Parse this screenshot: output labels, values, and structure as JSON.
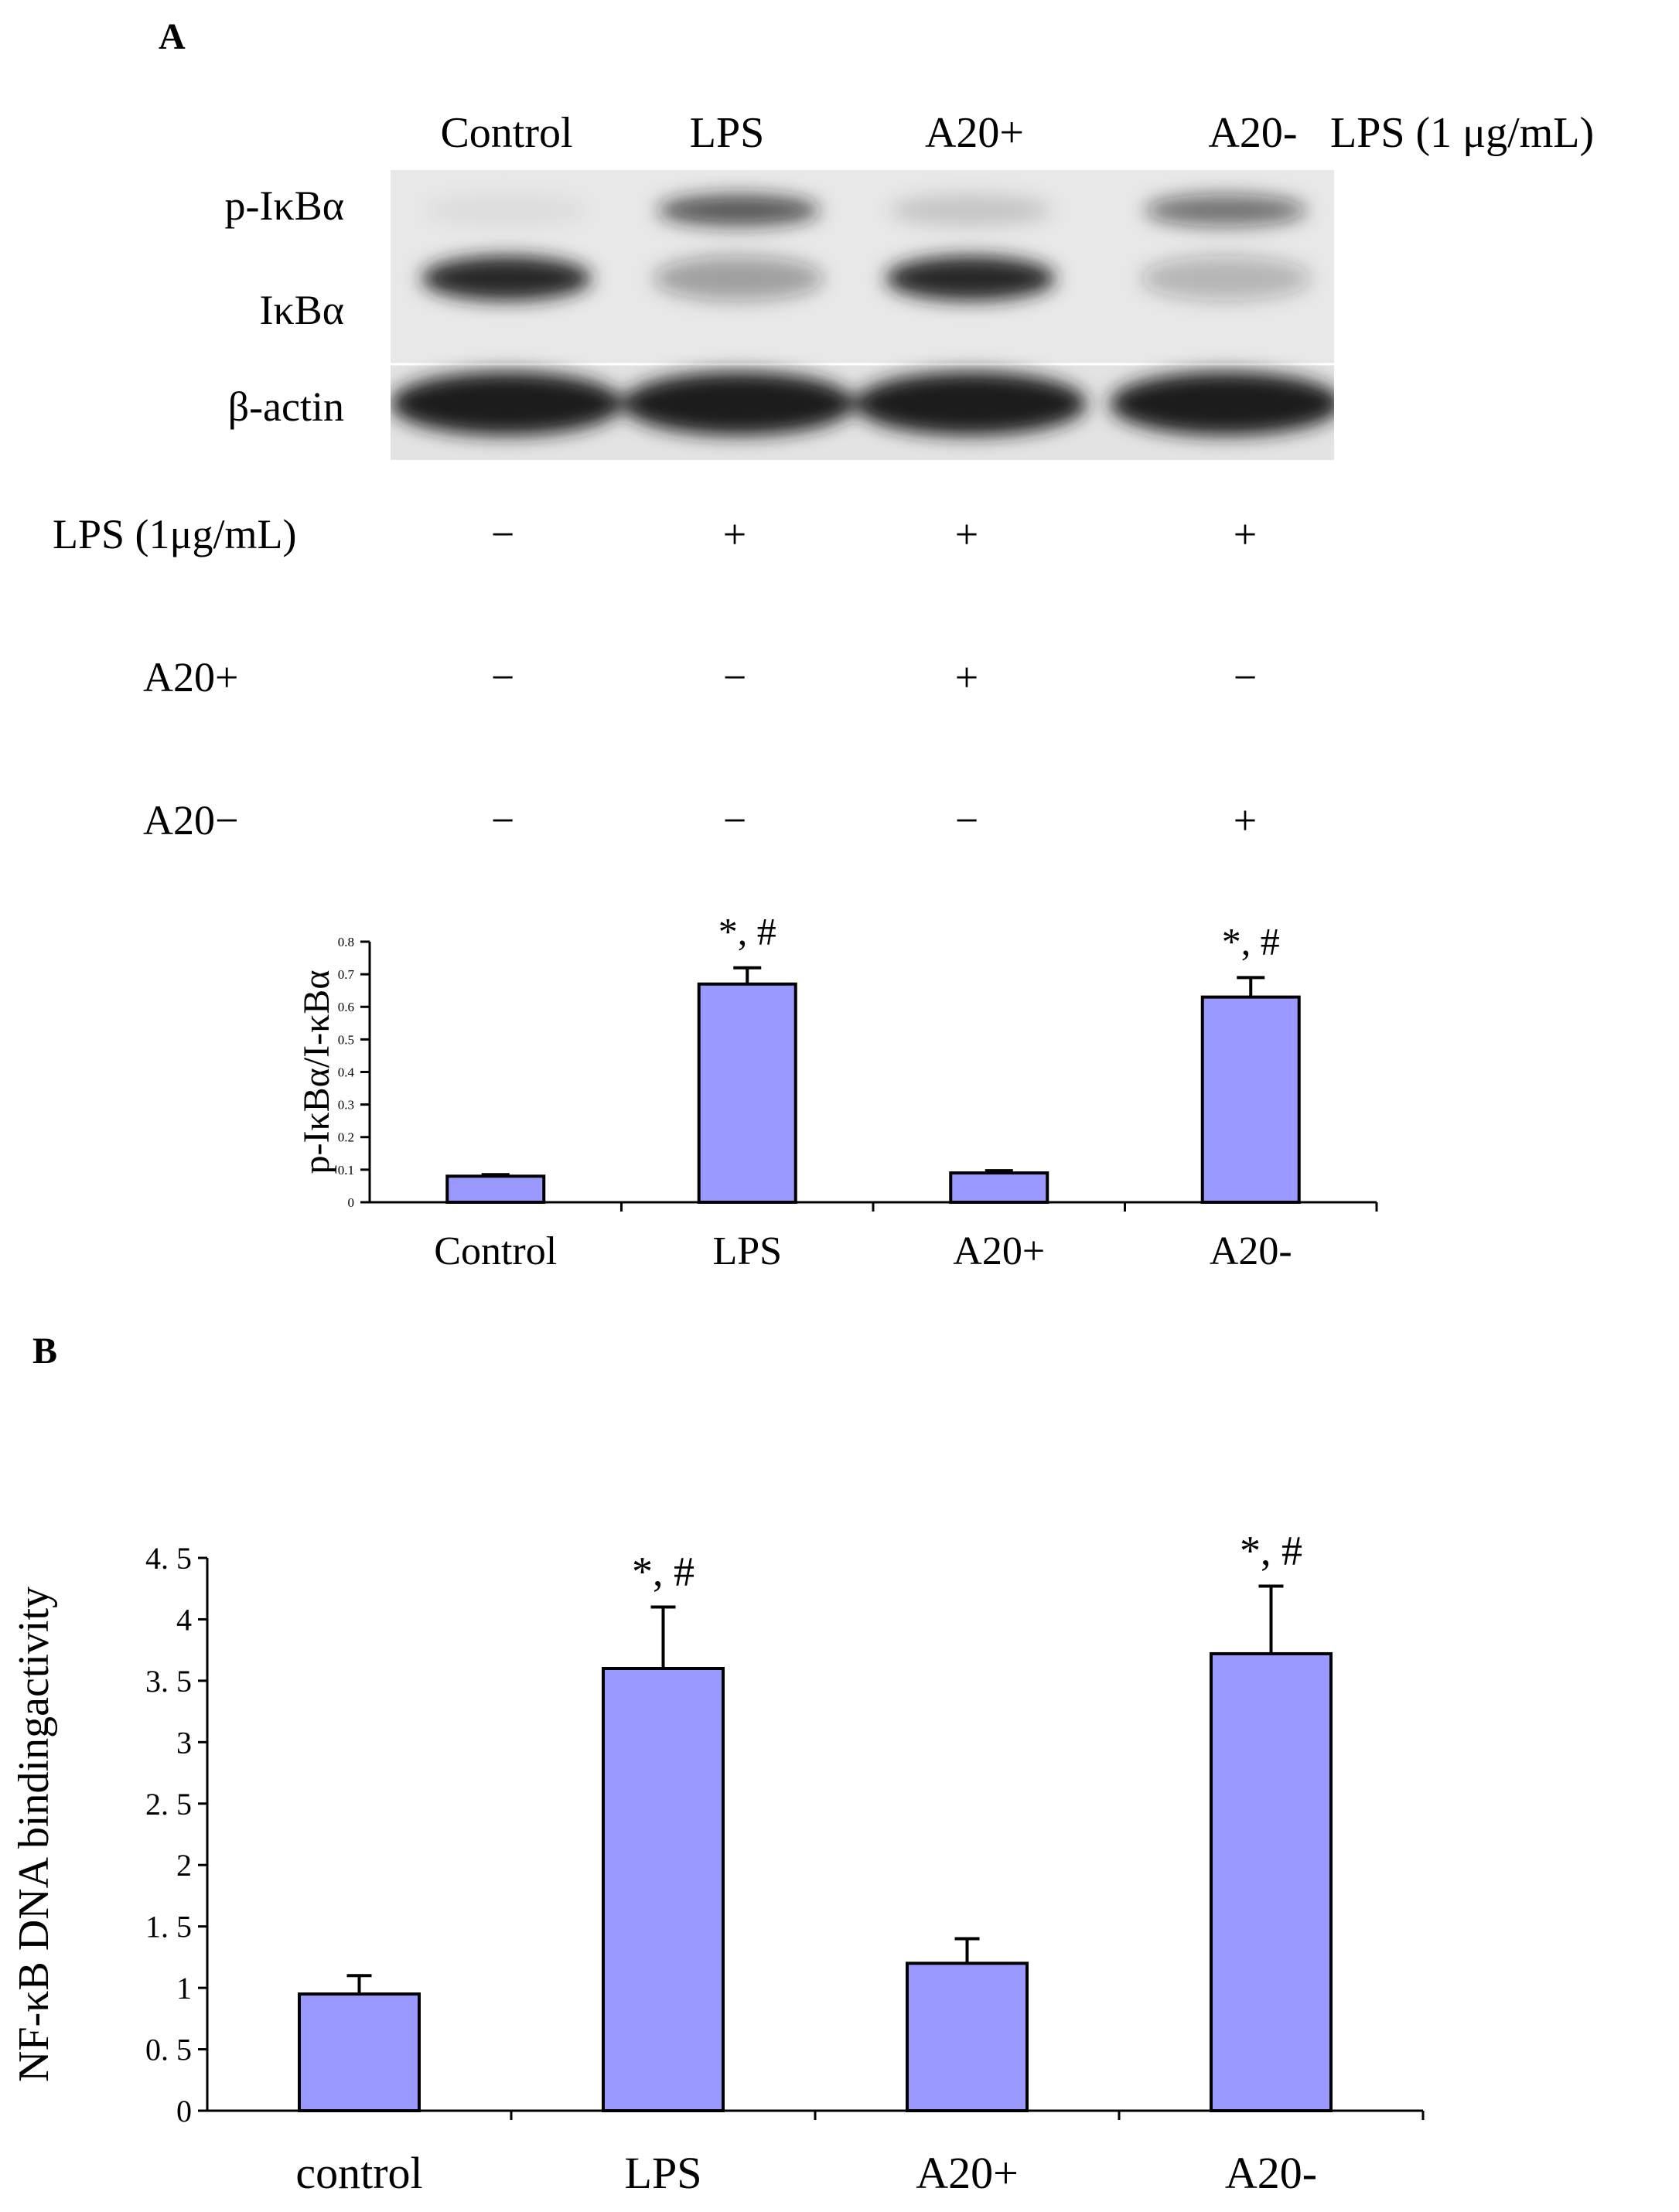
{
  "panel_a": {
    "label": "A",
    "lanes": [
      "Control",
      "LPS",
      "A20+",
      "A20-"
    ],
    "header_note": "LPS (1 μg/mL)",
    "bands": [
      "p-IκBα",
      "IκBα",
      "β-actin"
    ],
    "treatments": [
      {
        "label": "LPS (1μg/mL)",
        "signs": [
          "−",
          "+",
          "+",
          "+"
        ]
      },
      {
        "label": "A20+",
        "signs": [
          "−",
          "−",
          "+",
          "−"
        ]
      },
      {
        "label": "A20−",
        "signs": [
          "−",
          "−",
          "−",
          "+"
        ]
      }
    ],
    "blot_colors": {
      "background": "#e8e8e8",
      "band": "#1a1a1a"
    },
    "band_intensity": {
      "p-IκBα": [
        0.05,
        0.7,
        0.15,
        0.55
      ],
      "IκBα": [
        0.95,
        0.35,
        0.95,
        0.25
      ],
      "β-actin": [
        1.0,
        1.0,
        1.0,
        1.0
      ]
    }
  },
  "chart_data": [
    {
      "type": "bar",
      "panel": "A",
      "categories": [
        "Control",
        "LPS",
        "A20+",
        "A20-"
      ],
      "values": [
        0.08,
        0.67,
        0.09,
        0.63
      ],
      "errors": [
        0.005,
        0.05,
        0.007,
        0.06
      ],
      "annotations": [
        "",
        "*, #",
        "",
        "*, #"
      ],
      "ylabel": "p-IκBα/I-κBα",
      "xlabel": "",
      "ylim": [
        0,
        0.8
      ],
      "yticks": [
        "0",
        "0.1",
        "0.2",
        "0.3",
        "0.4",
        "0.5",
        "0.6",
        "0.7",
        "0.8"
      ],
      "bar_color": "#9999ff",
      "grid": false
    },
    {
      "type": "bar",
      "panel": "B",
      "label": "B",
      "categories": [
        "control",
        "LPS",
        "A20+",
        "A20-"
      ],
      "values": [
        0.95,
        3.6,
        1.2,
        3.72
      ],
      "errors": [
        0.15,
        0.5,
        0.2,
        0.55
      ],
      "annotations": [
        "",
        "*, #",
        "",
        "*, #"
      ],
      "ylabel": "NF-κB DNA bindingactivity",
      "xlabel": "",
      "ylim": [
        0,
        4.5
      ],
      "yticks": [
        "0",
        "0. 5",
        "1",
        "1. 5",
        "2",
        "2. 5",
        "3",
        "3. 5",
        "4",
        "4. 5"
      ],
      "bar_color": "#9999ff",
      "grid": false
    }
  ]
}
